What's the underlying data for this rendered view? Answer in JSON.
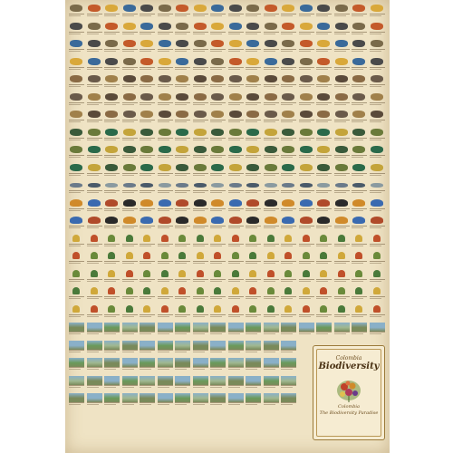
{
  "poster": {
    "title_top": "Colombia",
    "title_main": "Biodiversity",
    "subtitle_line1": "Colombia",
    "subtitle_line2": "The Biodiversity Paradise"
  },
  "colors": {
    "background": "#efe3c4",
    "frame": "#9b7a3a",
    "ink": "#4a3214"
  },
  "sections": [
    {
      "name": "birds",
      "icon": "bird-icon",
      "colors": [
        "#7a6a4a",
        "#3a6a9a",
        "#c45a2a",
        "#4a4a4a",
        "#d9a83a"
      ]
    },
    {
      "name": "mammals",
      "icon": "mammal-icon",
      "colors": [
        "#8a6a44",
        "#5a4a3a",
        "#a0804a",
        "#6a5a4a"
      ]
    },
    {
      "name": "reptiles-amphibians",
      "icon": "reptile-icon",
      "colors": [
        "#6a7a3a",
        "#3a5a3a",
        "#c4a43a",
        "#2a6a4a"
      ]
    },
    {
      "name": "fish",
      "icon": "fish-icon",
      "colors": [
        "#6a7a8a",
        "#4a5a6a",
        "#8a9aa0"
      ]
    },
    {
      "name": "butterflies",
      "icon": "butterfly-icon",
      "colors": [
        "#3a6ab0",
        "#d08a2a",
        "#2a2a2a",
        "#b04a2a"
      ]
    },
    {
      "name": "plants",
      "icon": "plant-icon",
      "colors": [
        "#4a7a3a",
        "#6a8a3a",
        "#c0502a",
        "#d0a83a"
      ]
    },
    {
      "name": "landscapes",
      "icon": "landscape-photo",
      "colors": [
        "#6a9a5a",
        "#8ab0c8",
        "#7a8a5a",
        "#a0b890"
      ]
    }
  ]
}
